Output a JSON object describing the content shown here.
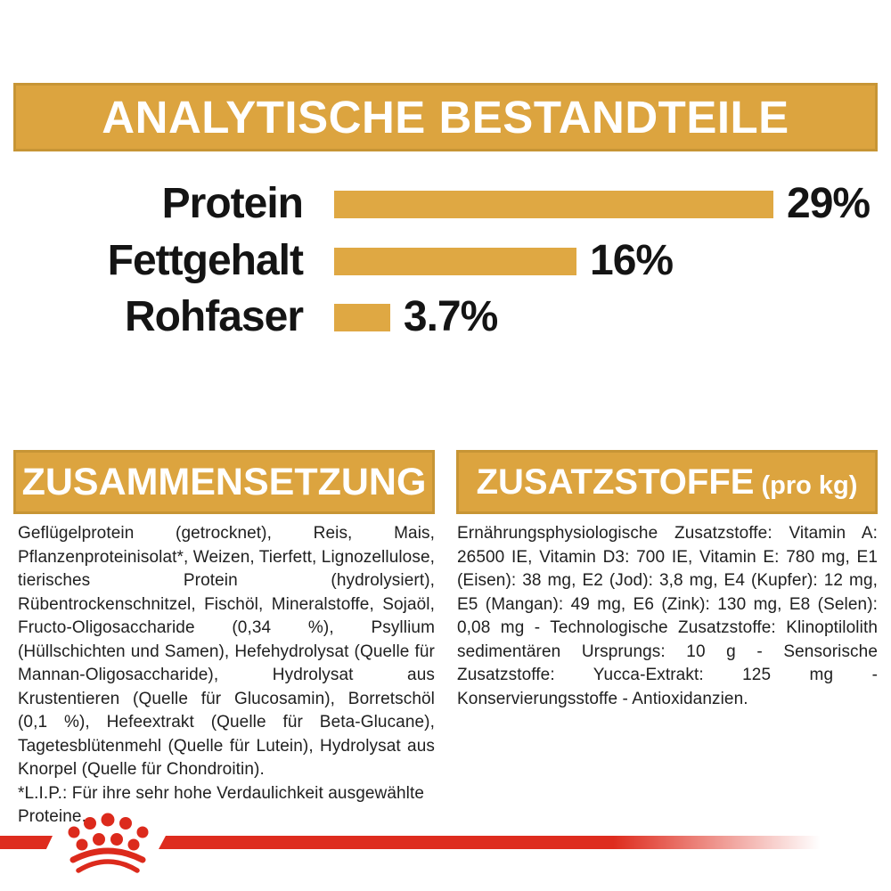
{
  "analytical": {
    "title": "ANALYTISCHE BESTANDTEILE"
  },
  "chart_data": {
    "type": "bar",
    "orientation": "horizontal",
    "title": "ANALYTISCHE BESTANDTEILE",
    "categories": [
      "Protein",
      "Fettgehalt",
      "Rohfaser"
    ],
    "values": [
      29,
      16,
      3.7
    ],
    "value_labels": [
      "29%",
      "16%",
      "3.7%"
    ],
    "unit": "%",
    "xlim": [
      0,
      29
    ],
    "bar_color": "#DFA843",
    "grid": false,
    "legend": false
  },
  "composition": {
    "title": "ZUSAMMENSETZUNG",
    "body": "Geflügelprotein (getrocknet), Reis, Mais, Pflanzenproteinisolat*, Weizen, Tierfett, Lignozellulose, tierisches Protein (hydrolysiert), Rübentrockenschnitzel, Fischöl, Mineralstoffe, Sojaöl, Fructo-Oligosaccharide (0,34 %), Psyllium (Hüllschichten und Samen), Hefehydrolysat (Quelle für Mannan-Oligosaccharide), Hydrolysat aus Krustentieren (Quelle für Glucosamin), Borretschöl (0,1 %), Hefeextrakt (Quelle für Beta-Glucane), Tagetesblütenmehl (Quelle für Lutein), Hydrolysat aus Knorpel (Quelle für Chondroitin).",
    "footnote": "*L.I.P.: Für ihre sehr hohe Verdaulichkeit ausgewählte Proteine."
  },
  "additives": {
    "title": "ZUSATZSTOFFE",
    "title_suffix": "(pro kg)",
    "body": "Ernährungsphysiologische Zusatzstoffe: Vitamin A: 26500 IE, Vitamin D3: 700 IE, Vitamin E: 780 mg, E1 (Eisen): 38 mg, E2 (Jod): 3,8 mg, E4 (Kupfer): 12 mg, E5 (Mangan): 49 mg, E6 (Zink): 130 mg, E8 (Selen): 0,08 mg - Technologische Zusatzstoffe: Klinoptilolith sedimentären Ursprungs: 10 g - Sensorische Zusatzstoffe: Yucca-Extrakt: 125 mg - Konservierungsstoffe - Antioxidanzien."
  },
  "colors": {
    "gold": "#DCA43F",
    "gold_border": "#C79535",
    "red": "#DE2C1E",
    "text": "#202020"
  },
  "footer": {
    "brand_icon": "royal-canin-crown"
  }
}
